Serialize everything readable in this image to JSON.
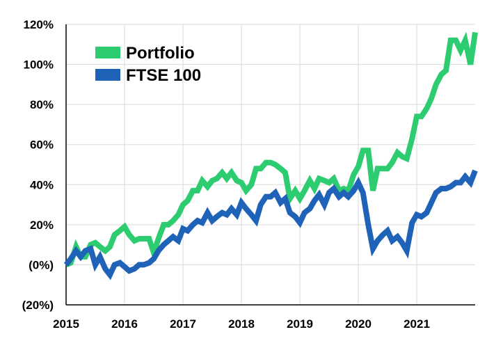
{
  "chart_data": {
    "type": "line",
    "title": "",
    "xlabel": "",
    "ylabel": "",
    "xlim": [
      2015,
      2022
    ],
    "ylim": [
      -20,
      120
    ],
    "grid": true,
    "legend_position": "top-left",
    "x_ticks": [
      {
        "value": 2015,
        "label": "2015"
      },
      {
        "value": 2016,
        "label": "2016"
      },
      {
        "value": 2017,
        "label": "2017"
      },
      {
        "value": 2018,
        "label": "2018"
      },
      {
        "value": 2019,
        "label": "2019"
      },
      {
        "value": 2020,
        "label": "2020"
      },
      {
        "value": 2021,
        "label": "2021"
      }
    ],
    "y_ticks": [
      {
        "value": 120,
        "label": "120%"
      },
      {
        "value": 100,
        "label": "100%"
      },
      {
        "value": 80,
        "label": "80%"
      },
      {
        "value": 60,
        "label": "60%"
      },
      {
        "value": 40,
        "label": "40%"
      },
      {
        "value": 20,
        "label": "20%"
      },
      {
        "value": 0,
        "label": "(0%)"
      },
      {
        "value": -20,
        "label": "(20%)"
      }
    ],
    "series": [
      {
        "name": "Portfolio",
        "color": "#2ecc71",
        "points": [
          [
            2015.0,
            0
          ],
          [
            2015.08,
            1
          ],
          [
            2015.17,
            9
          ],
          [
            2015.25,
            4
          ],
          [
            2015.33,
            4
          ],
          [
            2015.42,
            10
          ],
          [
            2015.5,
            11
          ],
          [
            2015.58,
            9
          ],
          [
            2015.67,
            7
          ],
          [
            2015.75,
            9
          ],
          [
            2015.83,
            15
          ],
          [
            2015.92,
            17
          ],
          [
            2016.0,
            19
          ],
          [
            2016.08,
            15
          ],
          [
            2016.17,
            12
          ],
          [
            2016.25,
            13
          ],
          [
            2016.33,
            13
          ],
          [
            2016.42,
            13
          ],
          [
            2016.5,
            6
          ],
          [
            2016.58,
            13
          ],
          [
            2016.67,
            20
          ],
          [
            2016.75,
            20
          ],
          [
            2016.83,
            22
          ],
          [
            2016.92,
            25
          ],
          [
            2017.0,
            30
          ],
          [
            2017.08,
            32
          ],
          [
            2017.17,
            37
          ],
          [
            2017.25,
            37
          ],
          [
            2017.33,
            42
          ],
          [
            2017.42,
            39
          ],
          [
            2017.5,
            42
          ],
          [
            2017.58,
            43
          ],
          [
            2017.67,
            46
          ],
          [
            2017.75,
            43
          ],
          [
            2017.83,
            46
          ],
          [
            2017.92,
            42
          ],
          [
            2018.0,
            41
          ],
          [
            2018.08,
            37
          ],
          [
            2018.17,
            40
          ],
          [
            2018.25,
            48
          ],
          [
            2018.33,
            48
          ],
          [
            2018.42,
            51
          ],
          [
            2018.5,
            51
          ],
          [
            2018.58,
            50
          ],
          [
            2018.67,
            48
          ],
          [
            2018.75,
            46
          ],
          [
            2018.83,
            33
          ],
          [
            2018.92,
            37
          ],
          [
            2019.0,
            33
          ],
          [
            2019.08,
            37
          ],
          [
            2019.17,
            42
          ],
          [
            2019.25,
            38
          ],
          [
            2019.33,
            43
          ],
          [
            2019.42,
            42
          ],
          [
            2019.5,
            41
          ],
          [
            2019.58,
            43
          ],
          [
            2019.67,
            37
          ],
          [
            2019.75,
            38
          ],
          [
            2019.83,
            37
          ],
          [
            2019.92,
            45
          ],
          [
            2020.0,
            49
          ],
          [
            2020.08,
            57
          ],
          [
            2020.17,
            57
          ],
          [
            2020.25,
            37
          ],
          [
            2020.33,
            48
          ],
          [
            2020.42,
            48
          ],
          [
            2020.5,
            48
          ],
          [
            2020.58,
            51
          ],
          [
            2020.67,
            56
          ],
          [
            2020.75,
            54
          ],
          [
            2020.83,
            53
          ],
          [
            2020.92,
            63
          ],
          [
            2021.0,
            74
          ],
          [
            2021.08,
            74
          ],
          [
            2021.17,
            78
          ],
          [
            2021.25,
            83
          ],
          [
            2021.33,
            90
          ],
          [
            2021.42,
            95
          ],
          [
            2021.5,
            97
          ],
          [
            2021.58,
            112
          ],
          [
            2021.67,
            112
          ],
          [
            2021.75,
            107
          ],
          [
            2021.83,
            112
          ],
          [
            2021.92,
            100
          ],
          [
            2022.0,
            116
          ]
        ]
      },
      {
        "name": "FTSE 100",
        "color": "#1f63b8",
        "points": [
          [
            2015.0,
            0
          ],
          [
            2015.08,
            3
          ],
          [
            2015.17,
            7
          ],
          [
            2015.25,
            4
          ],
          [
            2015.33,
            7
          ],
          [
            2015.42,
            8
          ],
          [
            2015.5,
            0
          ],
          [
            2015.58,
            4
          ],
          [
            2015.67,
            -2
          ],
          [
            2015.75,
            -5
          ],
          [
            2015.83,
            0
          ],
          [
            2015.92,
            1
          ],
          [
            2016.0,
            -1
          ],
          [
            2016.08,
            -3
          ],
          [
            2016.17,
            -2
          ],
          [
            2016.25,
            0
          ],
          [
            2016.33,
            0
          ],
          [
            2016.42,
            1
          ],
          [
            2016.5,
            3
          ],
          [
            2016.58,
            7
          ],
          [
            2016.67,
            10
          ],
          [
            2016.75,
            12
          ],
          [
            2016.83,
            14
          ],
          [
            2016.92,
            12
          ],
          [
            2017.0,
            18
          ],
          [
            2017.08,
            17
          ],
          [
            2017.17,
            20
          ],
          [
            2017.25,
            22
          ],
          [
            2017.33,
            21
          ],
          [
            2017.42,
            26
          ],
          [
            2017.5,
            22
          ],
          [
            2017.58,
            24
          ],
          [
            2017.67,
            26
          ],
          [
            2017.75,
            25
          ],
          [
            2017.83,
            28
          ],
          [
            2017.92,
            25
          ],
          [
            2018.0,
            31
          ],
          [
            2018.08,
            28
          ],
          [
            2018.17,
            25
          ],
          [
            2018.25,
            22
          ],
          [
            2018.33,
            30
          ],
          [
            2018.42,
            34
          ],
          [
            2018.5,
            34
          ],
          [
            2018.58,
            36
          ],
          [
            2018.67,
            31
          ],
          [
            2018.75,
            33
          ],
          [
            2018.83,
            26
          ],
          [
            2018.92,
            24
          ],
          [
            2019.0,
            21
          ],
          [
            2019.08,
            26
          ],
          [
            2019.17,
            28
          ],
          [
            2019.25,
            32
          ],
          [
            2019.33,
            35
          ],
          [
            2019.42,
            30
          ],
          [
            2019.5,
            36
          ],
          [
            2019.58,
            38
          ],
          [
            2019.67,
            34
          ],
          [
            2019.75,
            36
          ],
          [
            2019.83,
            34
          ],
          [
            2019.92,
            37
          ],
          [
            2020.0,
            41
          ],
          [
            2020.08,
            36
          ],
          [
            2020.17,
            20
          ],
          [
            2020.25,
            8
          ],
          [
            2020.33,
            12
          ],
          [
            2020.42,
            15
          ],
          [
            2020.5,
            17
          ],
          [
            2020.58,
            12
          ],
          [
            2020.67,
            14
          ],
          [
            2020.75,
            11
          ],
          [
            2020.83,
            7
          ],
          [
            2020.92,
            21
          ],
          [
            2021.0,
            25
          ],
          [
            2021.08,
            24
          ],
          [
            2021.17,
            26
          ],
          [
            2021.25,
            31
          ],
          [
            2021.33,
            36
          ],
          [
            2021.42,
            38
          ],
          [
            2021.5,
            38
          ],
          [
            2021.58,
            39
          ],
          [
            2021.67,
            41
          ],
          [
            2021.75,
            41
          ],
          [
            2021.83,
            44
          ],
          [
            2021.92,
            41
          ],
          [
            2022.0,
            47
          ]
        ]
      }
    ]
  }
}
